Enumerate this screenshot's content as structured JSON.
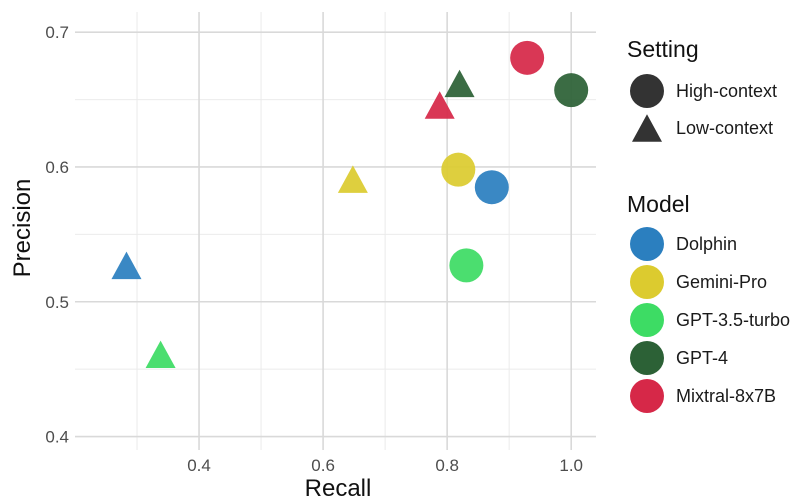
{
  "chart_data": {
    "type": "scatter",
    "xlabel": "Recall",
    "ylabel": "Precision",
    "xlim": [
      0.2,
      1.04
    ],
    "ylim": [
      0.39,
      0.715
    ],
    "x_ticks": [
      0.4,
      0.6,
      0.8,
      1.0
    ],
    "x_tick_labels": [
      "0.4",
      "0.6",
      "0.8",
      "1.0"
    ],
    "y_ticks": [
      0.4,
      0.5,
      0.6,
      0.7
    ],
    "y_tick_labels": [
      "0.4",
      "0.5",
      "0.6",
      "0.7"
    ],
    "grid": true,
    "legend_position": "right",
    "legends": {
      "setting": {
        "title": "Setting",
        "items": [
          {
            "label": "High-context",
            "shape": "circle"
          },
          {
            "label": "Low-context",
            "shape": "triangle"
          }
        ]
      },
      "model": {
        "title": "Model",
        "items": [
          {
            "label": "Dolphin",
            "color": "#2b7fbf"
          },
          {
            "label": "Gemini-Pro",
            "color": "#dccb2f"
          },
          {
            "label": "GPT-3.5-turbo",
            "color": "#3ddc64"
          },
          {
            "label": "GPT-4",
            "color": "#2c6136"
          },
          {
            "label": "Mixtral-8x7B",
            "color": "#d62848"
          }
        ]
      }
    },
    "points": [
      {
        "model": "Dolphin",
        "setting": "High-context",
        "recall": 0.872,
        "precision": 0.585
      },
      {
        "model": "Dolphin",
        "setting": "Low-context",
        "recall": 0.283,
        "precision": 0.527
      },
      {
        "model": "Gemini-Pro",
        "setting": "High-context",
        "recall": 0.818,
        "precision": 0.598
      },
      {
        "model": "Gemini-Pro",
        "setting": "Low-context",
        "recall": 0.648,
        "precision": 0.591
      },
      {
        "model": "GPT-3.5-turbo",
        "setting": "High-context",
        "recall": 0.831,
        "precision": 0.527
      },
      {
        "model": "GPT-3.5-turbo",
        "setting": "Low-context",
        "recall": 0.338,
        "precision": 0.461
      },
      {
        "model": "GPT-4",
        "setting": "High-context",
        "recall": 1.0,
        "precision": 0.657
      },
      {
        "model": "GPT-4",
        "setting": "Low-context",
        "recall": 0.82,
        "precision": 0.662
      },
      {
        "model": "Mixtral-8x7B",
        "setting": "High-context",
        "recall": 0.929,
        "precision": 0.681
      },
      {
        "model": "Mixtral-8x7B",
        "setting": "Low-context",
        "recall": 0.788,
        "precision": 0.646
      }
    ]
  }
}
